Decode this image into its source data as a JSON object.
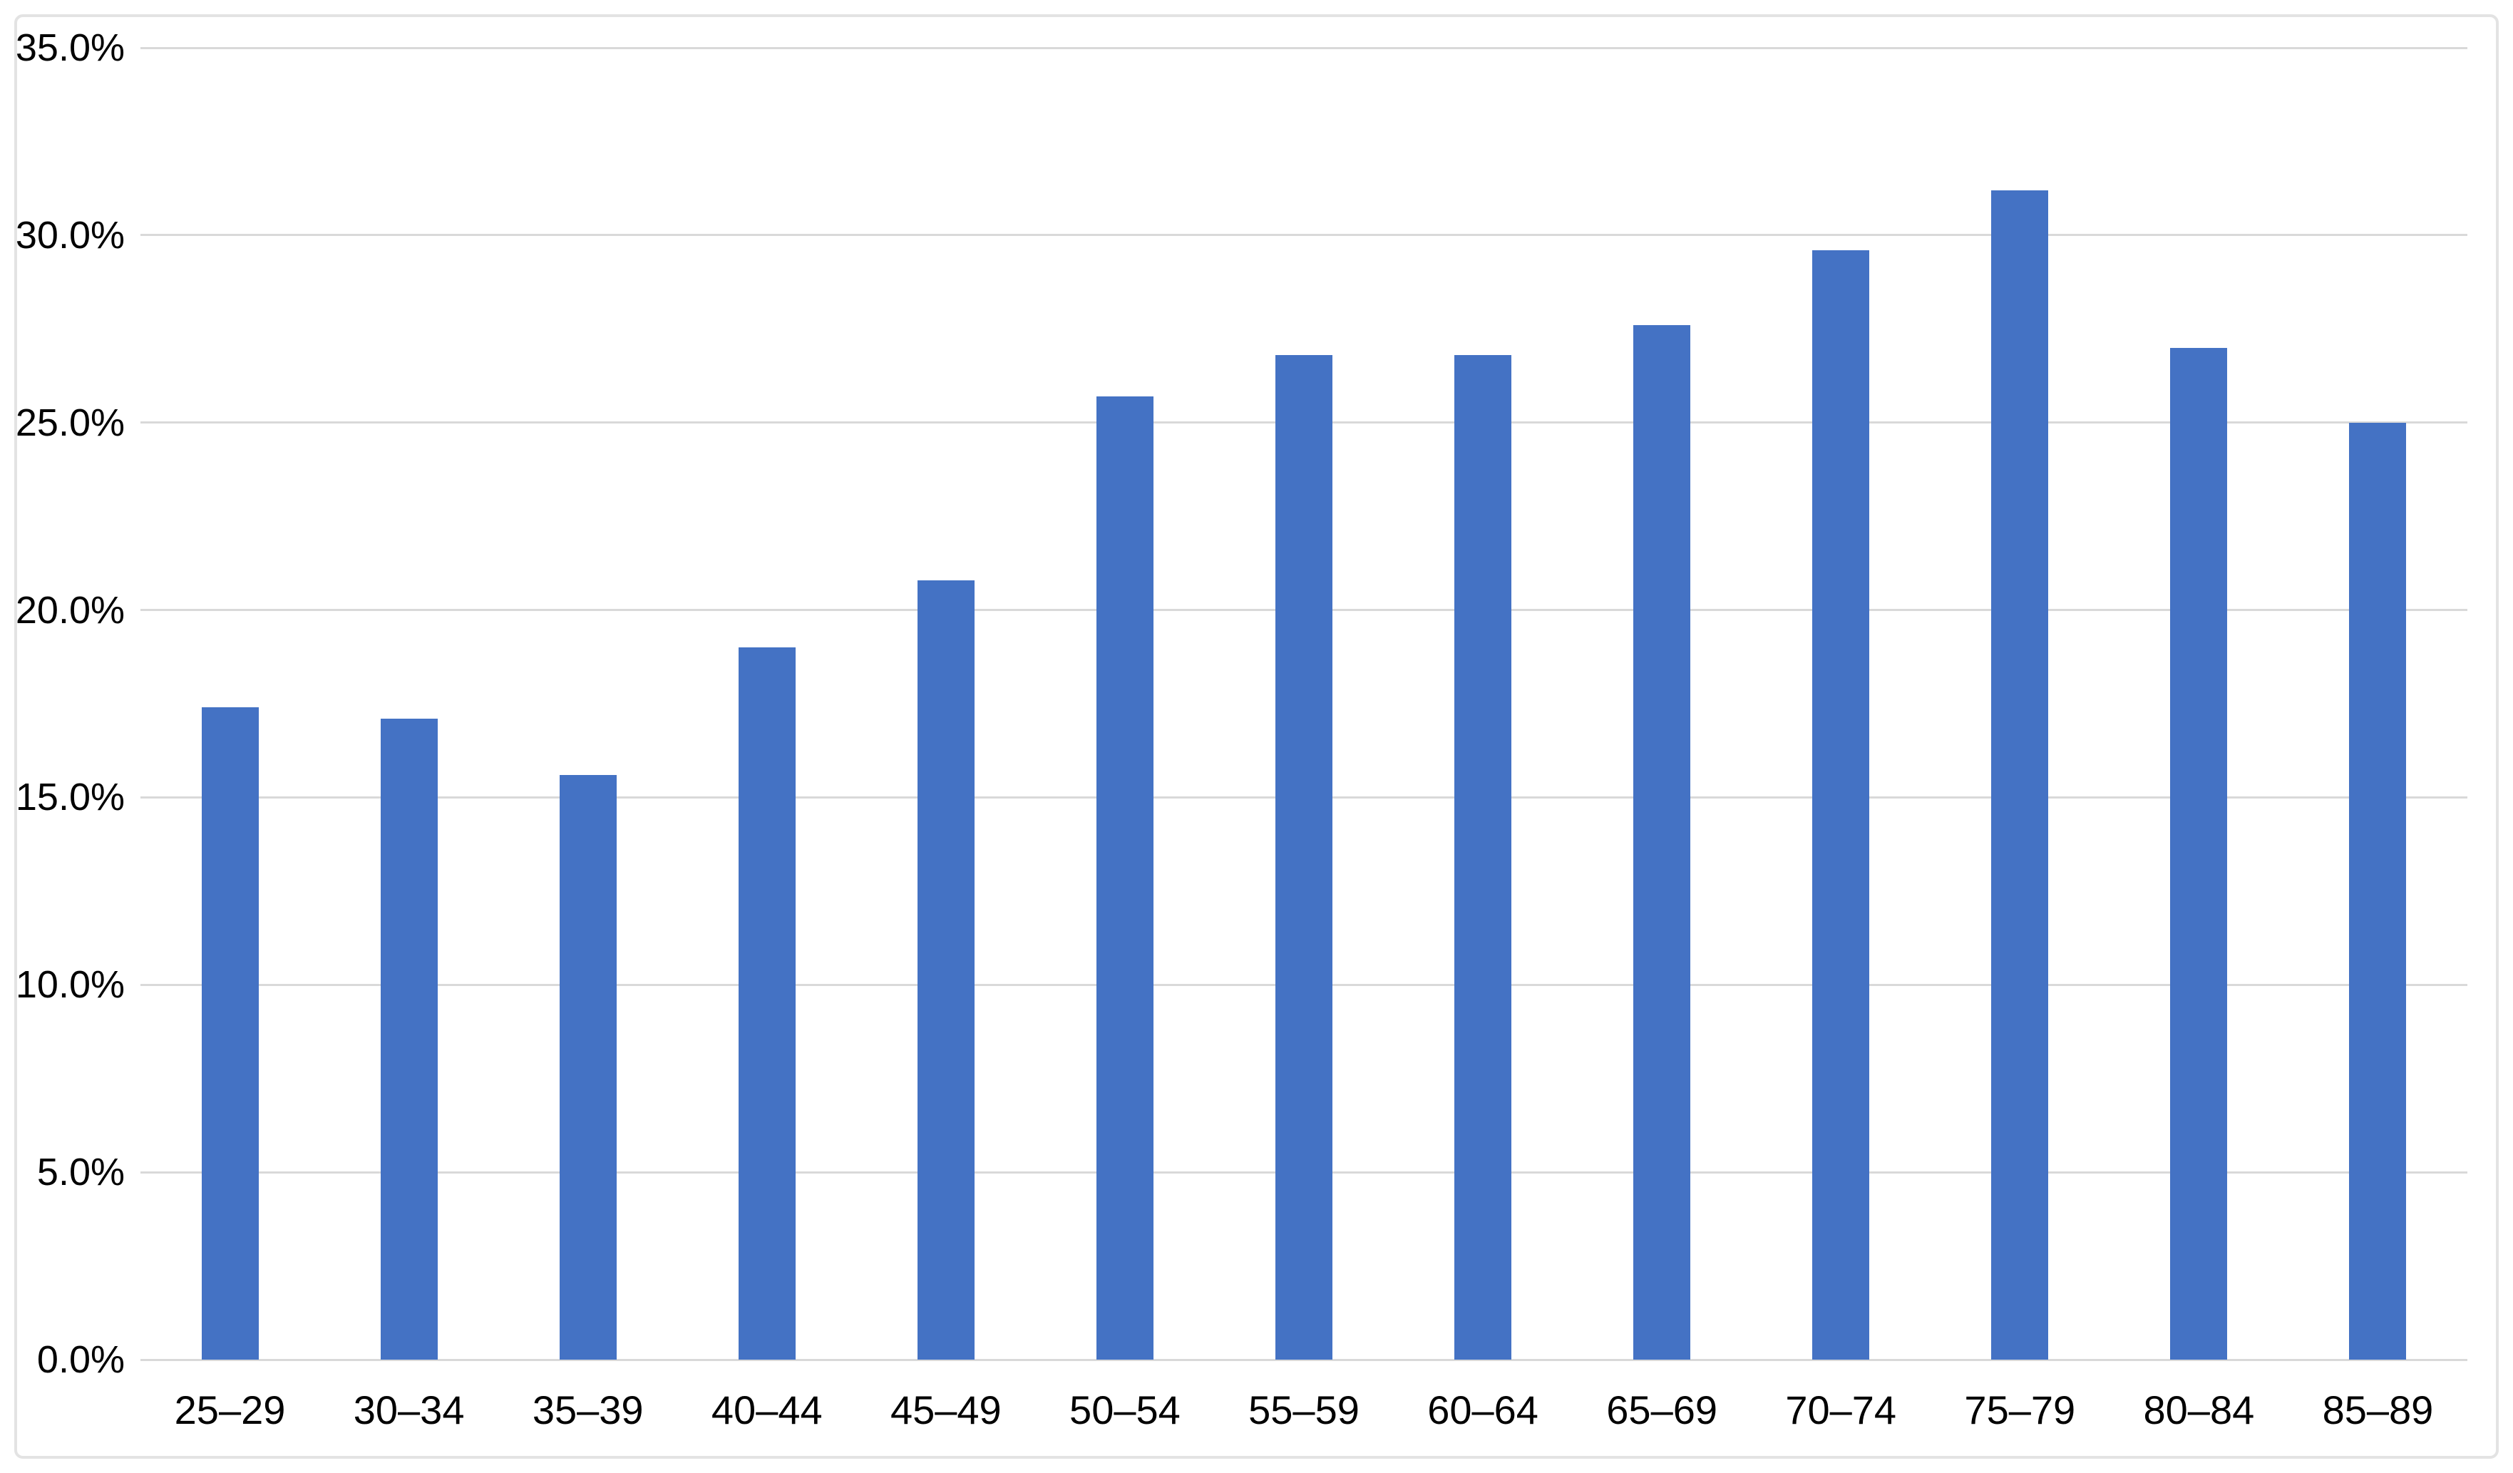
{
  "chart_data": {
    "type": "bar",
    "title": "",
    "xlabel": "",
    "ylabel": "",
    "categories": [
      "25–29",
      "30–34",
      "35–39",
      "40–44",
      "45–49",
      "50–54",
      "55–59",
      "60–64",
      "65–69",
      "70–74",
      "75–79",
      "80–84",
      "85–89"
    ],
    "values": [
      17.4,
      17.1,
      15.6,
      19.0,
      20.8,
      25.7,
      26.8,
      26.8,
      27.6,
      29.6,
      31.2,
      27.0,
      25.0
    ],
    "value_unit": "percent",
    "y_ticks": [
      {
        "value": 35,
        "label": "35.0%"
      },
      {
        "value": 30,
        "label": "30.0%"
      },
      {
        "value": 25,
        "label": "25.0%"
      },
      {
        "value": 20,
        "label": "20.0%"
      },
      {
        "value": 15,
        "label": "15.0%"
      },
      {
        "value": 10,
        "label": "10.0%"
      },
      {
        "value": 5,
        "label": "5.0%"
      },
      {
        "value": 0,
        "label": "0.0%"
      }
    ],
    "ylim": [
      0,
      35
    ],
    "grid": true,
    "legend": "none",
    "colors": {
      "bar": "#4472C4",
      "gridline": "#D9D9D9",
      "frame_border": "#E3E3E3",
      "text": "#000000",
      "background": "#FFFFFF"
    }
  }
}
